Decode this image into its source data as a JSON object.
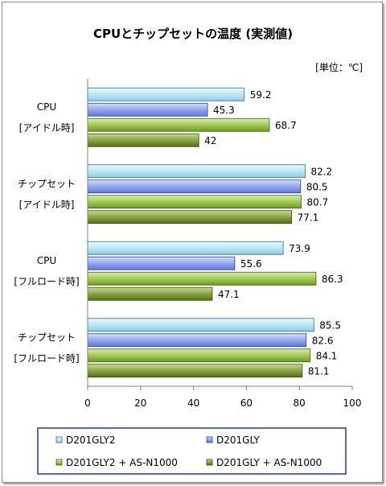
{
  "chart_data": {
    "type": "bar",
    "orientation": "horizontal",
    "title": "CPUとチップセットの温度 (実測値)",
    "unit_label": "[単位：℃]",
    "categories": [
      [
        "CPU",
        "[アイドル時]"
      ],
      [
        "チップセット",
        "[アイドル時]"
      ],
      [
        "CPU",
        "[フルロード時]"
      ],
      [
        "チップセット",
        "[フルロード時]"
      ]
    ],
    "series": [
      {
        "name": "D201GLY2",
        "values": [
          59.2,
          82.2,
          73.9,
          85.5
        ],
        "color": "#b7e3f3",
        "edge": "#2a6f8a"
      },
      {
        "name": "D201GLY",
        "values": [
          45.3,
          80.5,
          55.6,
          82.6
        ],
        "color": "#8fa6ee",
        "edge": "#2b3f94"
      },
      {
        "name": "D201GLY2 + AS-N1000",
        "values": [
          68.7,
          80.7,
          86.3,
          84.1
        ],
        "color": "#9cc24e",
        "edge": "#3f5f12"
      },
      {
        "name": "D201GLY + AS-N1000",
        "values": [
          42,
          77.1,
          47.1,
          81.1
        ],
        "color": "#7e9a3a",
        "edge": "#344a10"
      }
    ],
    "xlim": [
      0,
      100
    ],
    "xticks": [
      0,
      20,
      40,
      60,
      80,
      100
    ],
    "grid": false,
    "legend_position": "bottom"
  }
}
